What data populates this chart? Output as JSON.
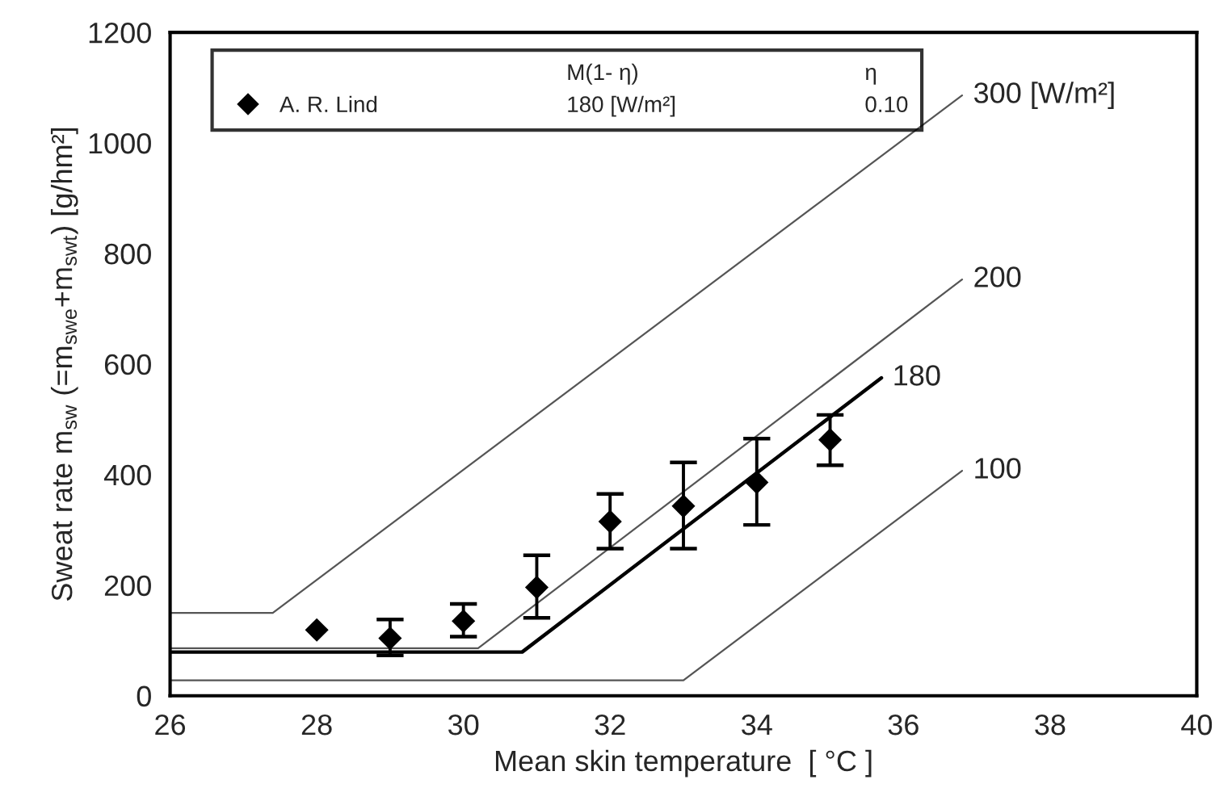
{
  "chart_data": {
    "type": "scatter",
    "xlabel": "Mean skin temperature  [ °C ]",
    "ylabel": "Sweat rate m$_{sw}$ (=m$_{swe}$+m$_{swt}$) [g/hm²]",
    "xlim": [
      26,
      40
    ],
    "xticks": [
      26,
      28,
      30,
      32,
      34,
      36,
      38,
      40
    ],
    "ylim": [
      0,
      1200
    ],
    "yticks": [
      0,
      200,
      400,
      600,
      800,
      1000,
      1200
    ],
    "grid": false,
    "legend": "top left",
    "annotations": [
      "M(1- η)",
      "η",
      "180 [W/m²]",
      "0.10"
    ],
    "series": [
      {
        "name": "A. R. Lind",
        "marker": "diamond",
        "color": "#000000",
        "x": [
          28,
          29,
          30,
          31,
          32,
          33,
          34,
          35
        ],
        "values": [
          119,
          104,
          135,
          196,
          315,
          343,
          386,
          463
        ],
        "errors": [
          null,
          [
            73,
            138
          ],
          [
            107,
            166
          ],
          [
            141,
            254
          ],
          [
            266,
            365
          ],
          [
            266,
            422
          ],
          [
            309,
            465
          ],
          [
            417,
            508
          ]
        ]
      },
      {
        "name": "300 [W/m²]",
        "type": "line",
        "marker": "none",
        "color": "#555555",
        "x": [
          26,
          27.4,
          36.8
        ],
        "values": [
          150,
          150,
          1086
        ]
      },
      {
        "name": "200",
        "type": "line",
        "marker": "none",
        "color": "#555555",
        "x": [
          26,
          30.2,
          36.8
        ],
        "values": [
          86,
          86,
          753
        ]
      },
      {
        "name": "180",
        "type": "line",
        "marker": "none",
        "color": "#000000",
        "x": [
          26,
          30.8,
          35.7
        ],
        "values": [
          79,
          79,
          575
        ]
      },
      {
        "name": "100",
        "type": "line",
        "marker": "none",
        "color": "#555555",
        "x": [
          26,
          33,
          36.8
        ],
        "values": [
          28,
          28,
          407
        ]
      }
    ]
  }
}
